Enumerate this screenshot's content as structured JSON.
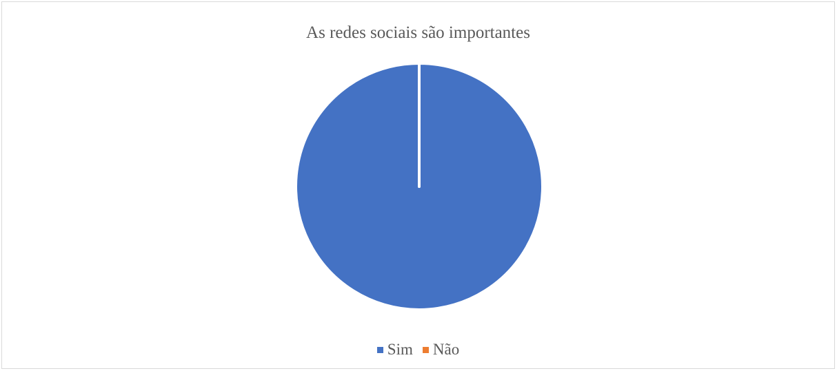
{
  "chart_data": {
    "type": "pie",
    "title": "As redes sociais são importantes",
    "categories": [
      "Sim",
      "Não"
    ],
    "values": [
      100,
      0
    ],
    "colors": [
      "#4472c4",
      "#ed7d31"
    ],
    "legend_position": "bottom",
    "start_angle_deg": 0,
    "slice_border_color": "#ffffff"
  }
}
